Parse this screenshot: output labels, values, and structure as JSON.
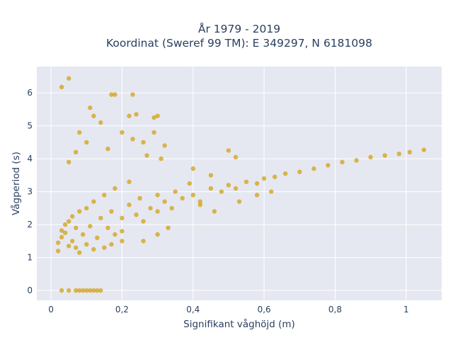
{
  "chart_data": {
    "type": "scatter",
    "title": "År 1979 - 2019",
    "subtitle": "Koordinat (Sweref 99 TM): E 349297, N 6181098",
    "xlabel": "Signifikant våghöjd (m)",
    "ylabel": "Vågperiod (s)",
    "xlim": [
      -0.04,
      1.1
    ],
    "ylim": [
      -0.3,
      6.8
    ],
    "x_ticks": [
      0,
      0.2,
      0.4,
      0.6,
      0.8,
      1
    ],
    "x_tick_labels": [
      "0",
      "0,2",
      "0,4",
      "0,6",
      "0,8",
      "1"
    ],
    "y_ticks": [
      0,
      1,
      2,
      3,
      4,
      5,
      6
    ],
    "y_tick_labels": [
      "0",
      "1",
      "2",
      "3",
      "4",
      "5",
      "6"
    ],
    "grid": true,
    "legend": "none",
    "colors": {
      "marker": "#d4a520",
      "plot_bg": "#e5e8f1",
      "grid": "#ffffff",
      "text": "#2a3f5f"
    },
    "points": [
      [
        0.03,
        6.18
      ],
      [
        0.05,
        6.44
      ],
      [
        0.02,
        1.45
      ],
      [
        0.02,
        1.2
      ],
      [
        0.03,
        1.62
      ],
      [
        0.03,
        1.82
      ],
      [
        0.04,
        1.75
      ],
      [
        0.04,
        2.0
      ],
      [
        0.05,
        1.35
      ],
      [
        0.05,
        2.1
      ],
      [
        0.06,
        1.5
      ],
      [
        0.06,
        2.25
      ],
      [
        0.07,
        1.3
      ],
      [
        0.07,
        1.9
      ],
      [
        0.08,
        1.15
      ],
      [
        0.08,
        2.4
      ],
      [
        0.09,
        1.7
      ],
      [
        0.1,
        1.4
      ],
      [
        0.1,
        2.5
      ],
      [
        0.11,
        1.95
      ],
      [
        0.12,
        1.25
      ],
      [
        0.12,
        2.7
      ],
      [
        0.13,
        1.6
      ],
      [
        0.14,
        2.2
      ],
      [
        0.15,
        1.3
      ],
      [
        0.15,
        2.9
      ],
      [
        0.16,
        1.9
      ],
      [
        0.17,
        2.4
      ],
      [
        0.18,
        1.7
      ],
      [
        0.18,
        3.1
      ],
      [
        0.2,
        2.2
      ],
      [
        0.2,
        1.8
      ],
      [
        0.22,
        2.6
      ],
      [
        0.22,
        3.3
      ],
      [
        0.24,
        2.3
      ],
      [
        0.25,
        2.8
      ],
      [
        0.26,
        2.1
      ],
      [
        0.28,
        2.5
      ],
      [
        0.3,
        2.9
      ],
      [
        0.3,
        2.4
      ],
      [
        0.32,
        2.7
      ],
      [
        0.34,
        2.5
      ],
      [
        0.35,
        3.0
      ],
      [
        0.37,
        2.8
      ],
      [
        0.4,
        2.9
      ],
      [
        0.42,
        2.7
      ],
      [
        0.45,
        3.1
      ],
      [
        0.48,
        3.0
      ],
      [
        0.5,
        3.2
      ],
      [
        0.52,
        3.1
      ],
      [
        0.55,
        3.3
      ],
      [
        0.58,
        3.25
      ],
      [
        0.6,
        3.4
      ],
      [
        0.63,
        3.45
      ],
      [
        0.66,
        3.55
      ],
      [
        0.7,
        3.6
      ],
      [
        0.74,
        3.7
      ],
      [
        0.78,
        3.8
      ],
      [
        0.82,
        3.9
      ],
      [
        0.86,
        3.95
      ],
      [
        0.9,
        4.05
      ],
      [
        0.94,
        4.1
      ],
      [
        0.98,
        4.15
      ],
      [
        1.01,
        4.2
      ],
      [
        1.05,
        4.27
      ],
      [
        0.08,
        4.8
      ],
      [
        0.11,
        5.55
      ],
      [
        0.12,
        5.3
      ],
      [
        0.14,
        5.1
      ],
      [
        0.17,
        5.95
      ],
      [
        0.18,
        5.95
      ],
      [
        0.23,
        5.95
      ],
      [
        0.22,
        5.3
      ],
      [
        0.24,
        5.35
      ],
      [
        0.29,
        5.25
      ],
      [
        0.3,
        5.3
      ],
      [
        0.05,
        3.9
      ],
      [
        0.07,
        4.2
      ],
      [
        0.1,
        4.5
      ],
      [
        0.16,
        4.3
      ],
      [
        0.2,
        4.8
      ],
      [
        0.23,
        4.6
      ],
      [
        0.26,
        4.5
      ],
      [
        0.29,
        4.8
      ],
      [
        0.32,
        4.4
      ],
      [
        0.27,
        4.1
      ],
      [
        0.31,
        4.0
      ],
      [
        0.4,
        3.7
      ],
      [
        0.45,
        3.5
      ],
      [
        0.5,
        4.25
      ],
      [
        0.52,
        4.05
      ],
      [
        0.39,
        3.25
      ],
      [
        0.42,
        2.6
      ],
      [
        0.46,
        2.4
      ],
      [
        0.53,
        2.7
      ],
      [
        0.58,
        2.9
      ],
      [
        0.62,
        3.0
      ],
      [
        0.3,
        1.7
      ],
      [
        0.26,
        1.5
      ],
      [
        0.33,
        1.9
      ],
      [
        0.2,
        1.5
      ],
      [
        0.17,
        1.4
      ],
      [
        0.03,
        0.0
      ],
      [
        0.05,
        0.0
      ],
      [
        0.07,
        0.0
      ],
      [
        0.08,
        0.0
      ],
      [
        0.09,
        0.0
      ],
      [
        0.1,
        0.0
      ],
      [
        0.11,
        0.0
      ],
      [
        0.12,
        0.0
      ],
      [
        0.13,
        0.0
      ],
      [
        0.14,
        0.0
      ]
    ]
  }
}
